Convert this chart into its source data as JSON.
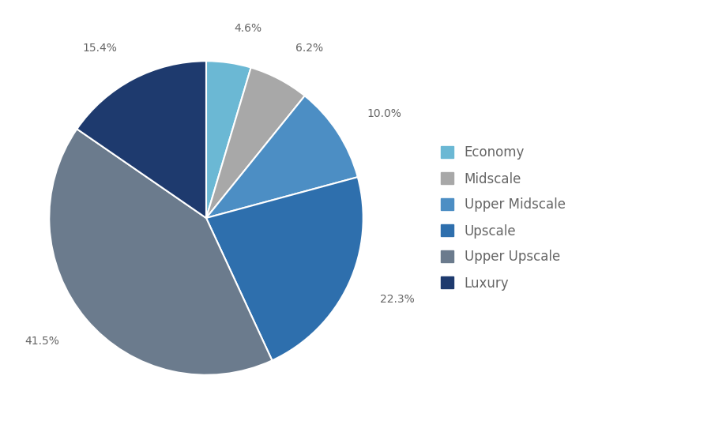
{
  "labels": [
    "Economy",
    "Midscale",
    "Upper Midscale",
    "Upscale",
    "Upper Upscale",
    "Luxury"
  ],
  "values": [
    4.6,
    6.2,
    10.0,
    22.3,
    41.5,
    15.4
  ],
  "colors": [
    "#6BB8D4",
    "#A8A8A8",
    "#4C8EC4",
    "#2E6FAD",
    "#6B7B8D",
    "#1E3A6E"
  ],
  "pct_labels": [
    "4.6%",
    "6.2%",
    "10.0%",
    "22.3%",
    "41.5%",
    "15.4%"
  ],
  "label_fontsize": 10,
  "legend_fontsize": 12
}
